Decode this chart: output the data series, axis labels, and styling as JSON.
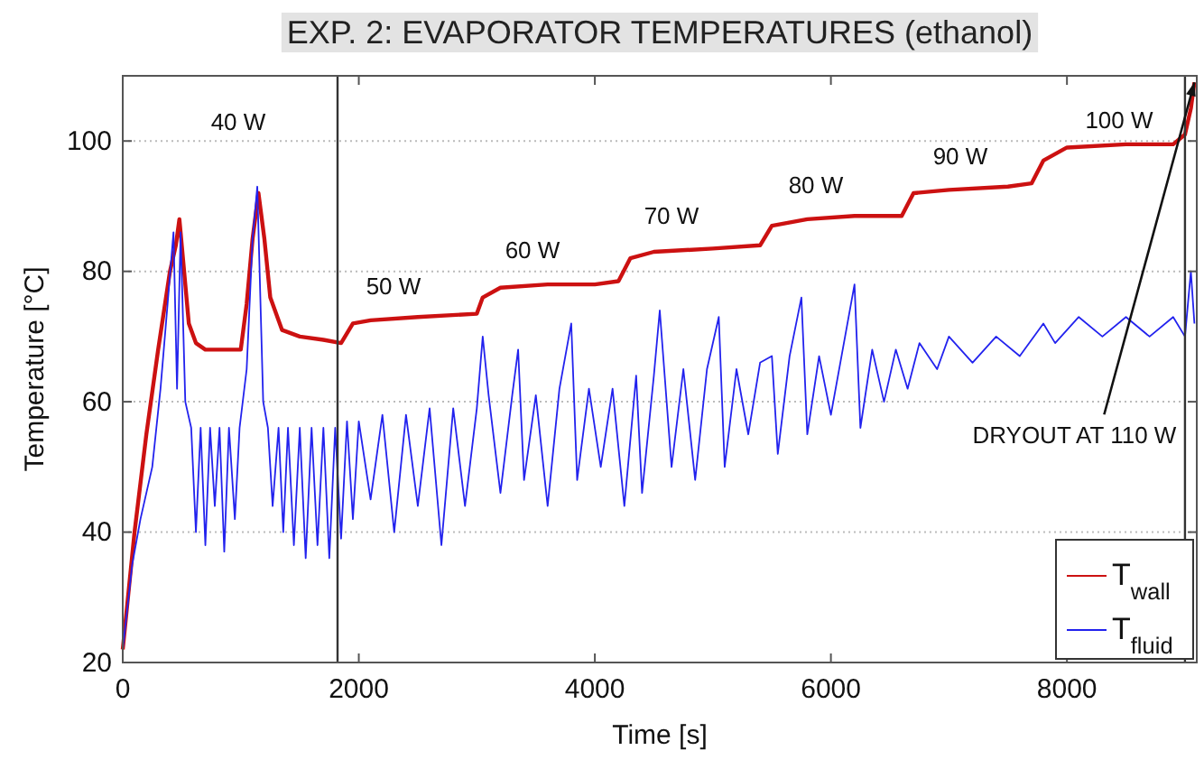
{
  "chart_data": {
    "type": "line",
    "title": "EXP. 2: EVAPORATOR TEMPERATURES (ethanol)",
    "xlabel": "Time [s]",
    "ylabel": "Temperature [°C]",
    "xlim": [
      0,
      9100
    ],
    "xticks": [
      0,
      2000,
      4000,
      6000,
      8000
    ],
    "ylim": [
      20,
      110
    ],
    "yticks": [
      20,
      40,
      60,
      80,
      100
    ],
    "grid": "y",
    "legend": "bottom right",
    "line_style": "solid",
    "marker": "none",
    "series": [
      {
        "name": "T$_{wall}$",
        "color": "#cc1111",
        "x": [
          0,
          100,
          200,
          300,
          400,
          450,
          480,
          520,
          560,
          620,
          700,
          950,
          1000,
          1050,
          1100,
          1150,
          1200,
          1250,
          1350,
          1500,
          1700,
          1850,
          1950,
          2100,
          2500,
          3000,
          3050,
          3200,
          3600,
          4000,
          4200,
          4300,
          4500,
          5000,
          5400,
          5500,
          5800,
          6200,
          6600,
          6700,
          7000,
          7500,
          7700,
          7800,
          8000,
          8500,
          8900,
          9000,
          9050,
          9080
        ],
        "values": [
          22,
          40,
          55,
          68,
          80,
          84,
          88,
          80,
          72,
          69,
          68,
          68,
          68,
          75,
          85,
          92,
          85,
          76,
          71,
          70,
          69.5,
          69,
          72,
          72.5,
          73,
          73.5,
          76,
          77.5,
          78,
          78,
          78.5,
          82,
          83,
          83.5,
          84,
          87,
          88,
          88.5,
          88.5,
          92,
          92.5,
          93,
          93.5,
          97,
          99,
          99.5,
          99.5,
          101,
          105,
          109
        ]
      },
      {
        "name": "T$_{fluid}$",
        "color": "#2222ee",
        "x": [
          0,
          80,
          150,
          250,
          320,
          380,
          430,
          460,
          490,
          530,
          580,
          620,
          660,
          700,
          740,
          780,
          820,
          860,
          900,
          950,
          990,
          1050,
          1100,
          1140,
          1190,
          1230,
          1270,
          1320,
          1360,
          1400,
          1450,
          1500,
          1550,
          1600,
          1650,
          1700,
          1750,
          1800,
          1850,
          1900,
          1950,
          2000,
          2100,
          2200,
          2300,
          2400,
          2500,
          2600,
          2700,
          2800,
          2900,
          3000,
          3050,
          3100,
          3200,
          3300,
          3350,
          3400,
          3500,
          3600,
          3700,
          3800,
          3850,
          3950,
          4050,
          4150,
          4250,
          4350,
          4400,
          4500,
          4550,
          4650,
          4750,
          4850,
          4950,
          5050,
          5100,
          5200,
          5300,
          5400,
          5500,
          5550,
          5650,
          5750,
          5800,
          5900,
          6000,
          6100,
          6200,
          6250,
          6350,
          6450,
          6550,
          6650,
          6750,
          6900,
          7000,
          7200,
          7400,
          7600,
          7800,
          7900,
          8100,
          8300,
          8500,
          8700,
          8900,
          9000,
          9050,
          9080
        ],
        "values": [
          22,
          35,
          42,
          50,
          62,
          75,
          86,
          62,
          86,
          60,
          56,
          40,
          56,
          38,
          56,
          44,
          56,
          37,
          56,
          42,
          56,
          65,
          85,
          93,
          60,
          56,
          44,
          56,
          40,
          56,
          38,
          56,
          36,
          56,
          38,
          56,
          36,
          56,
          39,
          57,
          42,
          57,
          45,
          58,
          40,
          58,
          44,
          59,
          38,
          59,
          44,
          59,
          70,
          61,
          46,
          61,
          68,
          48,
          61,
          44,
          62,
          72,
          48,
          62,
          50,
          62,
          44,
          64,
          46,
          64,
          74,
          50,
          65,
          48,
          65,
          73,
          50,
          65,
          55,
          66,
          67,
          52,
          67,
          76,
          55,
          67,
          58,
          68,
          78,
          56,
          68,
          60,
          68,
          62,
          69,
          65,
          70,
          66,
          70,
          67,
          72,
          69,
          73,
          70,
          73,
          70,
          73,
          70,
          80,
          72
        ]
      }
    ],
    "ref_lines": [
      {
        "axis": "x",
        "value": 1820,
        "color": "#333333"
      },
      {
        "axis": "x",
        "value": 9000,
        "color": "#333333"
      }
    ],
    "annotations": [
      "40 W",
      "50 W",
      "60 W",
      "70 W",
      "80 W",
      "90 W",
      "100 W",
      {
        "text": "DRYOUT AT 110 W",
        "x": 9080,
        "y": 109
      }
    ]
  }
}
